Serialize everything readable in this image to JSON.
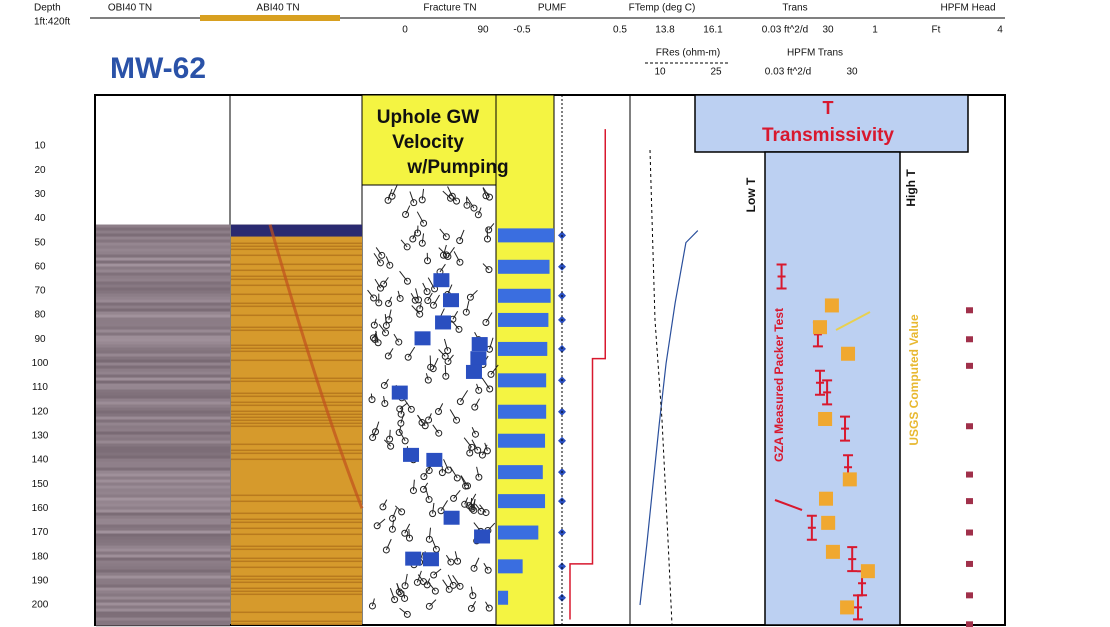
{
  "header": {
    "depth": "Depth",
    "scale": "1ft:420ft",
    "well": "MW-62",
    "track_titles": [
      "OBI40 TN",
      "ABI40 TN",
      "Fracture TN",
      "PUMF",
      "FTemp (deg C)",
      "Trans",
      "HPFM Head"
    ],
    "scale_labels": [
      "0",
      "90",
      "-0.5",
      "0.5",
      "13.8",
      "16.1",
      "0.03 ft^2/d",
      "30",
      "1",
      "Ft",
      "4"
    ],
    "second_titles": [
      "FRes (ohm-m)",
      "HPFM Trans"
    ],
    "second_labels": [
      "10",
      "25",
      "0.03 ft^2/d",
      "30"
    ]
  },
  "depth_ticks": [
    10,
    20,
    30,
    40,
    50,
    60,
    70,
    80,
    90,
    100,
    110,
    120,
    130,
    140,
    150,
    160,
    170,
    180,
    190,
    200
  ],
  "annotations": {
    "velocity": [
      "Uphole GW",
      "Velocity",
      "w/Pumping"
    ],
    "t": "T",
    "transmissivity": "Transmissivity",
    "low": "Low T",
    "high": "High T",
    "packer": "GZA Measured Packer Test",
    "usgs": "USGS Computed Value"
  },
  "velocity": {
    "depths": [
      47,
      60,
      72,
      82,
      94,
      107,
      120,
      132,
      145,
      157,
      170,
      184,
      197
    ],
    "values": [
      1.0,
      0.92,
      0.94,
      0.9,
      0.88,
      0.86,
      0.86,
      0.84,
      0.8,
      0.84,
      0.72,
      0.44,
      0.18
    ]
  },
  "pumf": {
    "lim": [
      -0.5,
      0.5
    ],
    "depths": [
      3,
      98,
      98,
      183,
      183,
      206
    ],
    "values": [
      0.17,
      0.17,
      0.0,
      0.0,
      -0.3,
      -0.3
    ]
  },
  "fres": {
    "lim": [
      10,
      25
    ],
    "depths": [
      45,
      50,
      75,
      100,
      125,
      150,
      175,
      200
    ],
    "values": [
      20.2,
      18.1,
      16.2,
      14.6,
      13.4,
      12.3,
      11.2,
      10
    ]
  },
  "trans_axis": {
    "lim": [
      0.03,
      30
    ],
    "log": true
  },
  "packer": {
    "depths": [
      64,
      88,
      108,
      112,
      127,
      143,
      168,
      181,
      191,
      201
    ],
    "values": [
      0.07,
      0.45,
      0.5,
      0.72,
      1.8,
      2.1,
      0.33,
      2.6,
      4.3,
      3.5
    ]
  },
  "usgs": {
    "depths": [
      76,
      85,
      96,
      123,
      148,
      156,
      166,
      178,
      186,
      201
    ],
    "values": [
      0.92,
      0.5,
      2.1,
      0.65,
      2.3,
      0.68,
      0.76,
      0.97,
      5.8,
      2.0
    ]
  },
  "hpfm_head_depths": [
    78,
    90,
    101,
    126,
    146,
    157,
    170,
    183,
    196,
    208
  ]
}
